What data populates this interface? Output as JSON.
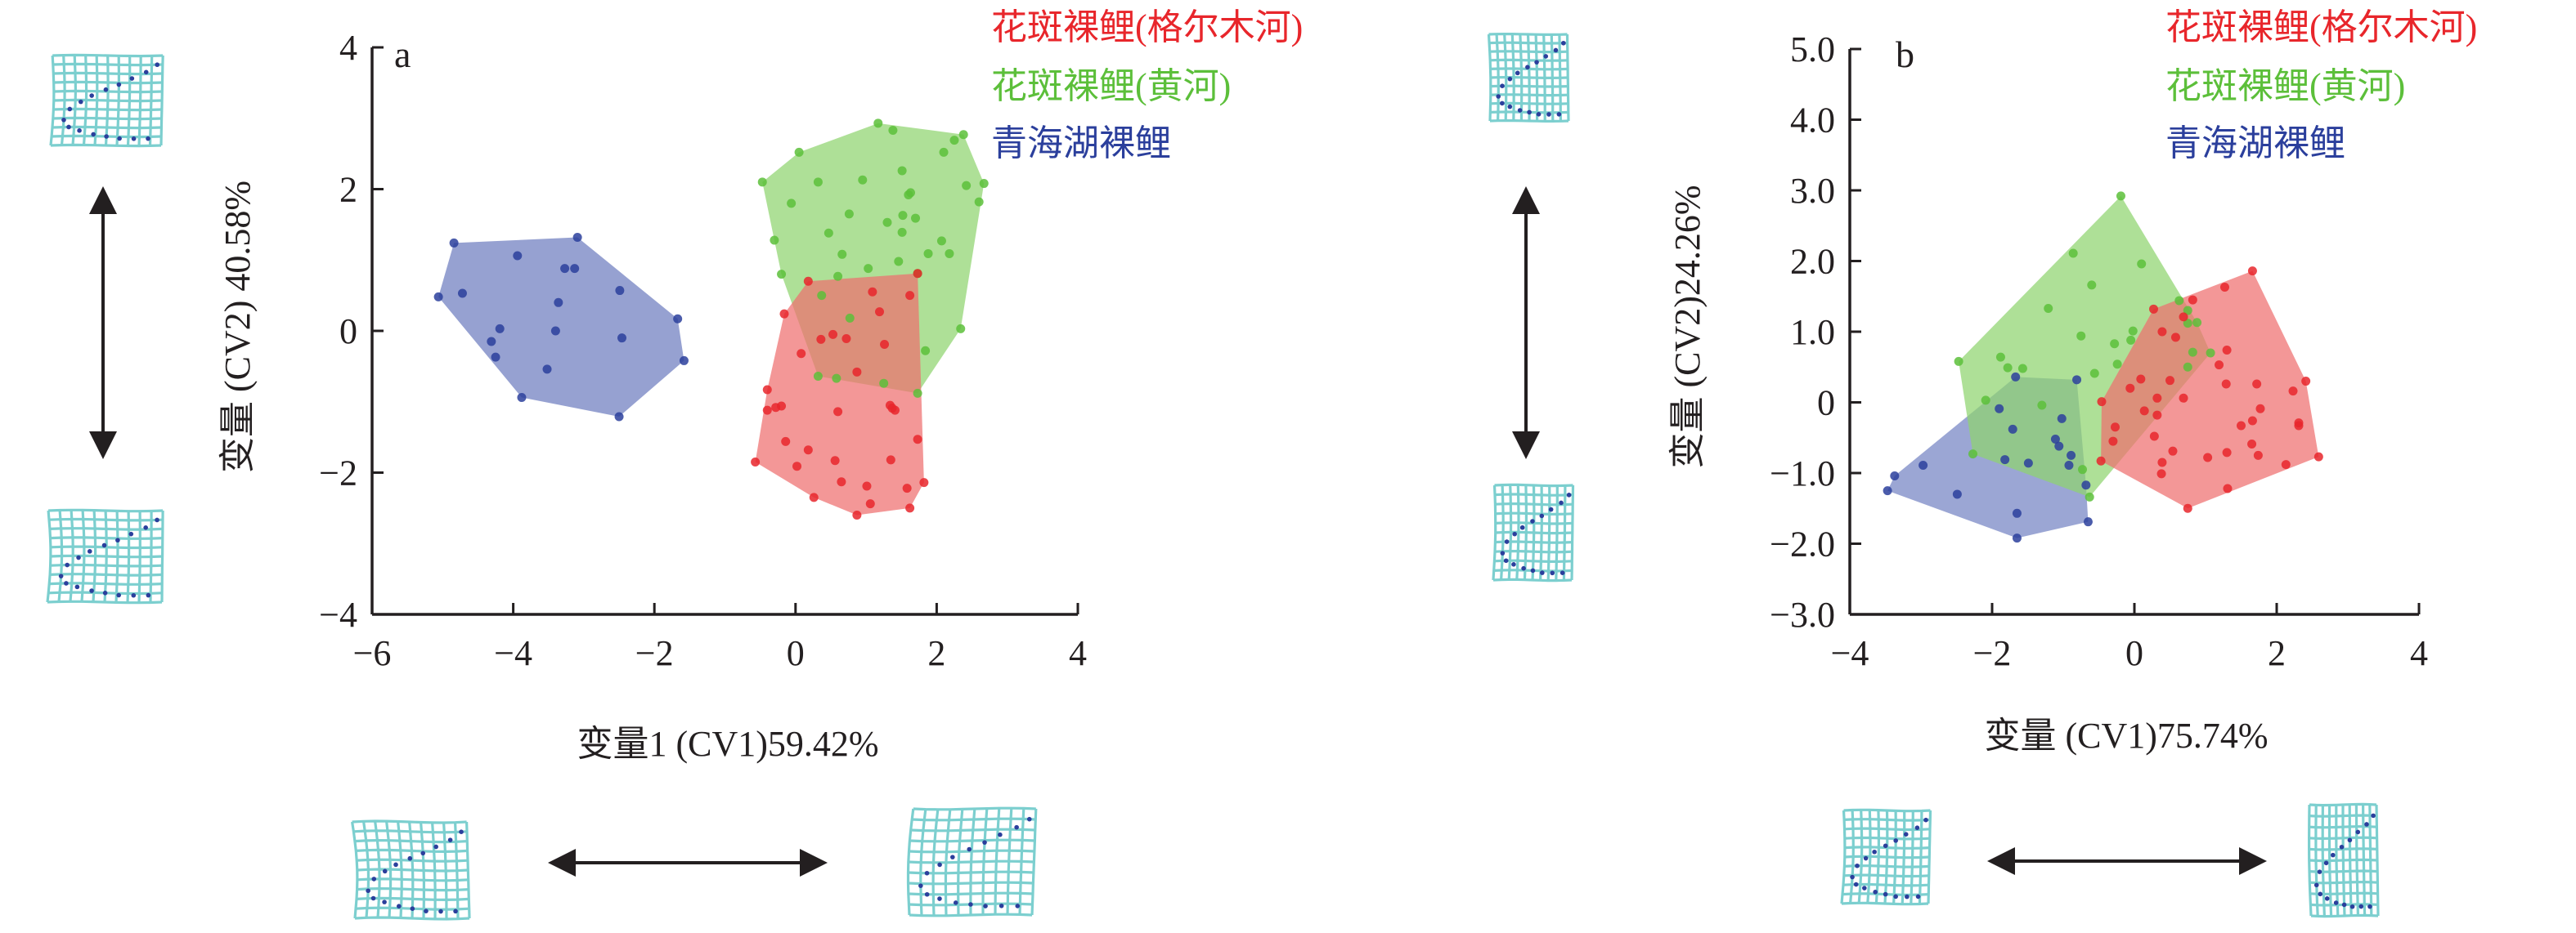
{
  "chart_data": [
    {
      "type": "scatter",
      "panel_label": "a",
      "xlabel": "变量1 (CV1)59.42%",
      "ylabel": "变量 (CV2) 40.58%",
      "xlim": [
        -6,
        4
      ],
      "ylim": [
        -4,
        4
      ],
      "xticks": [
        -6,
        -4,
        -2,
        0,
        2,
        4
      ],
      "xtick_labels": [
        "−6",
        "−4",
        "−2",
        "0",
        "2",
        "4"
      ],
      "yticks": [
        -4,
        -2,
        0,
        2,
        4
      ],
      "ytick_labels": [
        "−4",
        "−2",
        "0",
        "2",
        "4"
      ],
      "grid": false,
      "legend_position": "top-right",
      "series": [
        {
          "name": "青海湖裸鲤",
          "color": "#2b3f9c",
          "hull_color": "#6d7dbf",
          "points": [
            [
              -4.84,
              1.24
            ],
            [
              -5.06,
              0.48
            ],
            [
              -4.72,
              0.53
            ],
            [
              -3.94,
              1.06
            ],
            [
              -3.27,
              0.88
            ],
            [
              -3.13,
              0.88
            ],
            [
              -3.09,
              1.32
            ],
            [
              -2.49,
              0.57
            ],
            [
              -3.36,
              0.4
            ],
            [
              -4.19,
              0.03
            ],
            [
              -3.4,
              0.0
            ],
            [
              -4.31,
              -0.15
            ],
            [
              -4.25,
              -0.37
            ],
            [
              -3.52,
              -0.54
            ],
            [
              -3.88,
              -0.94
            ],
            [
              -2.46,
              -0.1
            ],
            [
              -1.67,
              0.17
            ],
            [
              -1.58,
              -0.42
            ],
            [
              -2.5,
              -1.21
            ]
          ]
        },
        {
          "name": "花斑裸鲤(黄河)",
          "color": "#5cbf3a",
          "hull_color": "#8fd46f",
          "points": [
            [
              -0.47,
              2.1
            ],
            [
              0.05,
              2.52
            ],
            [
              1.17,
              2.93
            ],
            [
              1.38,
              2.83
            ],
            [
              2.25,
              2.69
            ],
            [
              2.38,
              2.77
            ],
            [
              2.1,
              2.52
            ],
            [
              2.67,
              2.08
            ],
            [
              2.42,
              2.05
            ],
            [
              2.6,
              1.82
            ],
            [
              0.32,
              2.1
            ],
            [
              0.95,
              2.13
            ],
            [
              1.51,
              2.26
            ],
            [
              1.63,
              1.95
            ],
            [
              1.6,
              1.92
            ],
            [
              -0.06,
              1.8
            ],
            [
              0.76,
              1.65
            ],
            [
              1.3,
              1.53
            ],
            [
              1.52,
              1.63
            ],
            [
              1.7,
              1.59
            ],
            [
              0.47,
              1.38
            ],
            [
              1.51,
              1.39
            ],
            [
              -0.3,
              1.28
            ],
            [
              0.66,
              1.08
            ],
            [
              1.46,
              0.98
            ],
            [
              1.88,
              1.09
            ],
            [
              2.07,
              1.27
            ],
            [
              2.18,
              1.09
            ],
            [
              -0.2,
              0.8
            ],
            [
              0.6,
              0.77
            ],
            [
              1.03,
              0.88
            ],
            [
              1.73,
              0.81
            ],
            [
              0.37,
              0.5
            ],
            [
              0.77,
              0.18
            ],
            [
              2.34,
              0.03
            ],
            [
              1.84,
              -0.28
            ],
            [
              1.73,
              -0.88
            ],
            [
              0.32,
              -0.64
            ],
            [
              0.58,
              -0.67
            ],
            [
              1.25,
              -0.74
            ]
          ]
        },
        {
          "name": "花斑裸鲤(格尔木河)",
          "color": "#e8262b",
          "hull_color": "#ee6f6f",
          "points": [
            [
              0.18,
              0.7
            ],
            [
              1.09,
              0.55
            ],
            [
              1.62,
              0.5
            ],
            [
              1.19,
              0.27
            ],
            [
              -0.16,
              0.24
            ],
            [
              0.36,
              -0.12
            ],
            [
              0.53,
              -0.05
            ],
            [
              0.72,
              -0.11
            ],
            [
              1.26,
              -0.19
            ],
            [
              0.08,
              -0.32
            ],
            [
              0.87,
              -0.58
            ],
            [
              -0.4,
              -0.83
            ],
            [
              -0.4,
              -1.12
            ],
            [
              -0.28,
              -1.08
            ],
            [
              -0.2,
              -1.06
            ],
            [
              0.6,
              -1.14
            ],
            [
              1.34,
              -1.05
            ],
            [
              1.37,
              -1.09
            ],
            [
              1.41,
              -1.12
            ],
            [
              1.73,
              -1.53
            ],
            [
              -0.14,
              -1.56
            ],
            [
              0.18,
              -1.68
            ],
            [
              -0.57,
              -1.85
            ],
            [
              0.02,
              -1.91
            ],
            [
              0.56,
              -1.83
            ],
            [
              1.35,
              -1.82
            ],
            [
              0.65,
              -2.13
            ],
            [
              1.01,
              -2.19
            ],
            [
              1.58,
              -2.22
            ],
            [
              1.82,
              -2.14
            ],
            [
              0.26,
              -2.35
            ],
            [
              1.06,
              -2.44
            ],
            [
              1.62,
              -2.5
            ],
            [
              0.87,
              -2.6
            ],
            [
              1.73,
              0.81
            ]
          ]
        }
      ],
      "legend": [
        "花斑裸鲤(格尔木河)",
        "花斑裸鲤(黄河)",
        "青海湖裸鲤"
      ]
    },
    {
      "type": "scatter",
      "panel_label": "b",
      "xlabel": "变量 (CV1)75.74%",
      "ylabel": "变量 (CV2)24.26%",
      "xlim": [
        -4,
        4
      ],
      "ylim": [
        -3,
        5
      ],
      "xticks": [
        -4,
        -2,
        0,
        2,
        4
      ],
      "xtick_labels": [
        "−4",
        "−2",
        "0",
        "2",
        "4"
      ],
      "yticks": [
        -3,
        -2,
        -1,
        0,
        1,
        2,
        3,
        4,
        5
      ],
      "ytick_labels": [
        "−3.0",
        "−2.0",
        "−1.0",
        "0",
        "1.0",
        "2.0",
        "3.0",
        "4.0",
        "5.0"
      ],
      "grid": false,
      "legend_position": "top-right",
      "series": [
        {
          "name": "青海湖裸鲤",
          "color": "#2b3f9c",
          "hull_color": "#7584c4",
          "points": [
            [
              -3.47,
              -1.25
            ],
            [
              -3.37,
              -1.04
            ],
            [
              -2.97,
              -0.89
            ],
            [
              -2.49,
              -1.3
            ],
            [
              -1.65,
              -1.57
            ],
            [
              -1.65,
              -1.92
            ],
            [
              -0.65,
              -1.69
            ],
            [
              -1.67,
              0.36
            ],
            [
              -0.81,
              0.32
            ],
            [
              -1.9,
              -0.09
            ],
            [
              -1.71,
              -0.38
            ],
            [
              -1.02,
              -0.23
            ],
            [
              -1.11,
              -0.52
            ],
            [
              -1.06,
              -0.62
            ],
            [
              -0.89,
              -0.75
            ],
            [
              -1.82,
              -0.81
            ],
            [
              -1.49,
              -0.86
            ],
            [
              -0.92,
              -0.89
            ],
            [
              -0.68,
              -1.17
            ]
          ]
        },
        {
          "name": "花斑裸鲤(黄河)",
          "color": "#5cbf3a",
          "hull_color": "#8fd46f",
          "points": [
            [
              -0.19,
              2.92
            ],
            [
              -0.86,
              2.11
            ],
            [
              0.1,
              1.96
            ],
            [
              -0.6,
              1.66
            ],
            [
              -1.21,
              1.33
            ],
            [
              -0.75,
              0.94
            ],
            [
              -0.02,
              1.01
            ],
            [
              -0.05,
              0.88
            ],
            [
              -0.28,
              0.83
            ],
            [
              -0.24,
              0.54
            ],
            [
              0.63,
              1.44
            ],
            [
              0.75,
              1.3
            ],
            [
              0.75,
              1.12
            ],
            [
              0.88,
              1.13
            ],
            [
              0.82,
              0.71
            ],
            [
              1.07,
              0.7
            ],
            [
              0.75,
              0.5
            ],
            [
              -2.47,
              0.58
            ],
            [
              -1.88,
              0.64
            ],
            [
              -1.78,
              0.49
            ],
            [
              -1.57,
              0.48
            ],
            [
              -0.56,
              0.41
            ],
            [
              -2.09,
              0.03
            ],
            [
              -1.3,
              -0.04
            ],
            [
              -2.27,
              -0.73
            ],
            [
              -0.73,
              -0.95
            ],
            [
              -0.63,
              -1.34
            ]
          ]
        },
        {
          "name": "花斑裸鲤(格尔木河)",
          "color": "#e8262b",
          "hull_color": "#ee6f6f",
          "points": [
            [
              1.66,
              1.86
            ],
            [
              1.27,
              1.63
            ],
            [
              0.82,
              1.45
            ],
            [
              0.27,
              1.32
            ],
            [
              0.69,
              1.21
            ],
            [
              0.58,
              0.92
            ],
            [
              0.39,
              1.0
            ],
            [
              1.3,
              0.74
            ],
            [
              1.19,
              0.53
            ],
            [
              0.09,
              0.33
            ],
            [
              0.5,
              0.31
            ],
            [
              1.29,
              0.26
            ],
            [
              1.72,
              0.26
            ],
            [
              2.23,
              0.16
            ],
            [
              2.41,
              0.3
            ],
            [
              -0.06,
              0.2
            ],
            [
              -0.46,
              0.01
            ],
            [
              0.32,
              0.06
            ],
            [
              0.69,
              0.06
            ],
            [
              0.14,
              -0.12
            ],
            [
              0.32,
              -0.18
            ],
            [
              1.77,
              -0.09
            ],
            [
              1.66,
              -0.26
            ],
            [
              1.5,
              -0.33
            ],
            [
              2.31,
              -0.29
            ],
            [
              2.31,
              -0.33
            ],
            [
              0.28,
              -0.48
            ],
            [
              1.65,
              -0.59
            ],
            [
              1.74,
              -0.75
            ],
            [
              1.3,
              -0.71
            ],
            [
              0.54,
              -0.69
            ],
            [
              1.03,
              -0.78
            ],
            [
              0.39,
              -0.85
            ],
            [
              0.38,
              -1.01
            ],
            [
              2.13,
              -0.88
            ],
            [
              2.59,
              -0.77
            ],
            [
              -0.47,
              -0.83
            ],
            [
              1.31,
              -1.22
            ],
            [
              0.75,
              -1.5
            ],
            [
              -0.27,
              -0.35
            ],
            [
              -0.3,
              -0.55
            ]
          ]
        }
      ],
      "legend": [
        "花斑裸鲤(格尔木河)",
        "花斑裸鲤(黄河)",
        "青海湖裸鲤"
      ]
    }
  ],
  "legend_colors": [
    "#e8262b",
    "#5cbf3a",
    "#2b3f9c"
  ],
  "grid_icon_color": "#7ccfcf",
  "landmark_color": "#2b3f9c"
}
